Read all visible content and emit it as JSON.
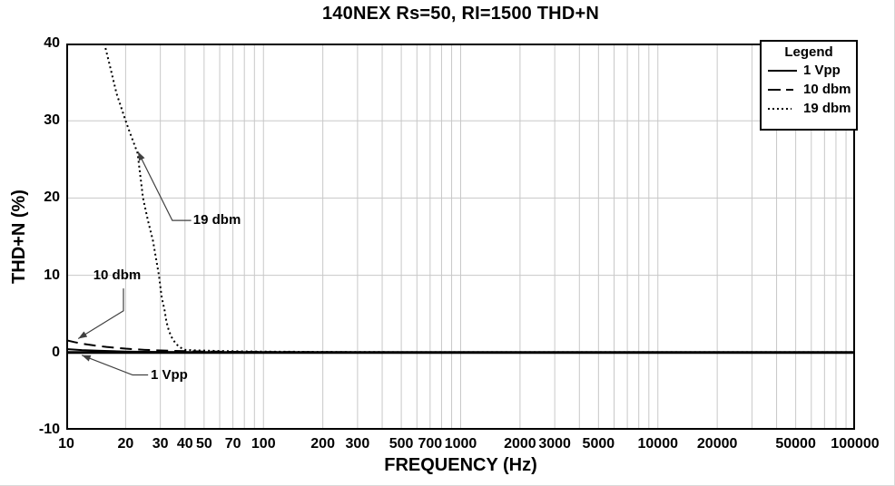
{
  "title": "140NEX Rs=50, RI=1500 THD+N",
  "colors": {
    "curve": "#000000",
    "grid": "#c8c8c8",
    "zero_line": "#000000",
    "border": "#000000",
    "leader": "#404040",
    "background": "#ffffff"
  },
  "chart_data": {
    "type": "line",
    "title": "140NEX Rs=50, RI=1500 THD+N",
    "xlabel": "FREQUENCY (Hz)",
    "ylabel": "THD+N (%)",
    "x_scale": "log",
    "xlim": [
      10,
      100000
    ],
    "ylim": [
      -10,
      40
    ],
    "x_ticks": [
      10,
      20,
      30,
      40,
      50,
      70,
      100,
      200,
      300,
      500,
      700,
      1000,
      2000,
      3000,
      5000,
      10000,
      20000,
      50000,
      100000
    ],
    "y_ticks": [
      40,
      30,
      20,
      10,
      0,
      -10
    ],
    "grid": true,
    "legend": {
      "title": "Legend",
      "position": "top-right",
      "entries": [
        {
          "label": "1 Vpp",
          "style": "solid"
        },
        {
          "label": "10 dbm",
          "style": "dashed"
        },
        {
          "label": "19 dbm",
          "style": "dotted"
        }
      ]
    },
    "series": [
      {
        "name": "1 Vpp",
        "style": "solid",
        "points": [
          [
            10,
            0.45
          ],
          [
            12,
            0.32
          ],
          [
            15,
            0.22
          ],
          [
            20,
            0.13
          ],
          [
            30,
            0.07
          ],
          [
            50,
            0.04
          ],
          [
            100,
            0.03
          ],
          [
            1000,
            0.02
          ],
          [
            100000,
            0.02
          ]
        ]
      },
      {
        "name": "10 dbm",
        "style": "dashed",
        "points": [
          [
            10,
            1.6
          ],
          [
            11,
            1.35
          ],
          [
            12,
            1.15
          ],
          [
            14,
            0.9
          ],
          [
            16,
            0.72
          ],
          [
            20,
            0.5
          ],
          [
            25,
            0.35
          ],
          [
            30,
            0.27
          ],
          [
            40,
            0.18
          ],
          [
            50,
            0.13
          ],
          [
            70,
            0.09
          ],
          [
            100,
            0.07
          ],
          [
            300,
            0.04
          ],
          [
            1000,
            0.03
          ],
          [
            100000,
            0.03
          ]
        ]
      },
      {
        "name": "19 dbm",
        "style": "dotted",
        "points": [
          [
            15.6,
            40
          ],
          [
            16.5,
            37.5
          ],
          [
            18,
            33.5
          ],
          [
            20,
            30
          ],
          [
            21,
            28.5
          ],
          [
            23,
            25.8
          ],
          [
            24.5,
            20
          ],
          [
            26,
            17
          ],
          [
            27.5,
            14.5
          ],
          [
            28.6,
            12
          ],
          [
            29.5,
            10
          ],
          [
            30.5,
            7.1
          ],
          [
            31.5,
            5.5
          ],
          [
            32.2,
            4
          ],
          [
            33,
            3
          ],
          [
            34,
            2.1
          ],
          [
            35.8,
            1.2
          ],
          [
            37.5,
            0.7
          ],
          [
            40,
            0.35
          ],
          [
            45,
            0.28
          ],
          [
            50,
            0.25
          ],
          [
            60,
            0.2
          ],
          [
            80,
            0.15
          ],
          [
            100,
            0.12
          ],
          [
            150,
            0.1
          ],
          [
            200,
            0.08
          ],
          [
            300,
            0.06
          ],
          [
            1000,
            0.05
          ],
          [
            100000,
            0.05
          ]
        ]
      }
    ],
    "annotations": [
      {
        "label": "19 dbm",
        "text_at": [
          44,
          17.1
        ],
        "path": [
          [
            43,
            17.1
          ],
          [
            34.5,
            17.1
          ],
          [
            23.1,
            26.0
          ]
        ]
      },
      {
        "label": "10 dbm",
        "text_at": [
          13.7,
          10.0
        ],
        "path": [
          [
            19.5,
            8.3
          ],
          [
            19.5,
            5.4
          ],
          [
            11.5,
            1.8
          ]
        ]
      },
      {
        "label": "1 Vpp",
        "text_at": [
          26.8,
          -2.9
        ],
        "path": [
          [
            26,
            -2.9
          ],
          [
            21.7,
            -2.9
          ],
          [
            12.0,
            -0.35
          ]
        ]
      }
    ]
  }
}
